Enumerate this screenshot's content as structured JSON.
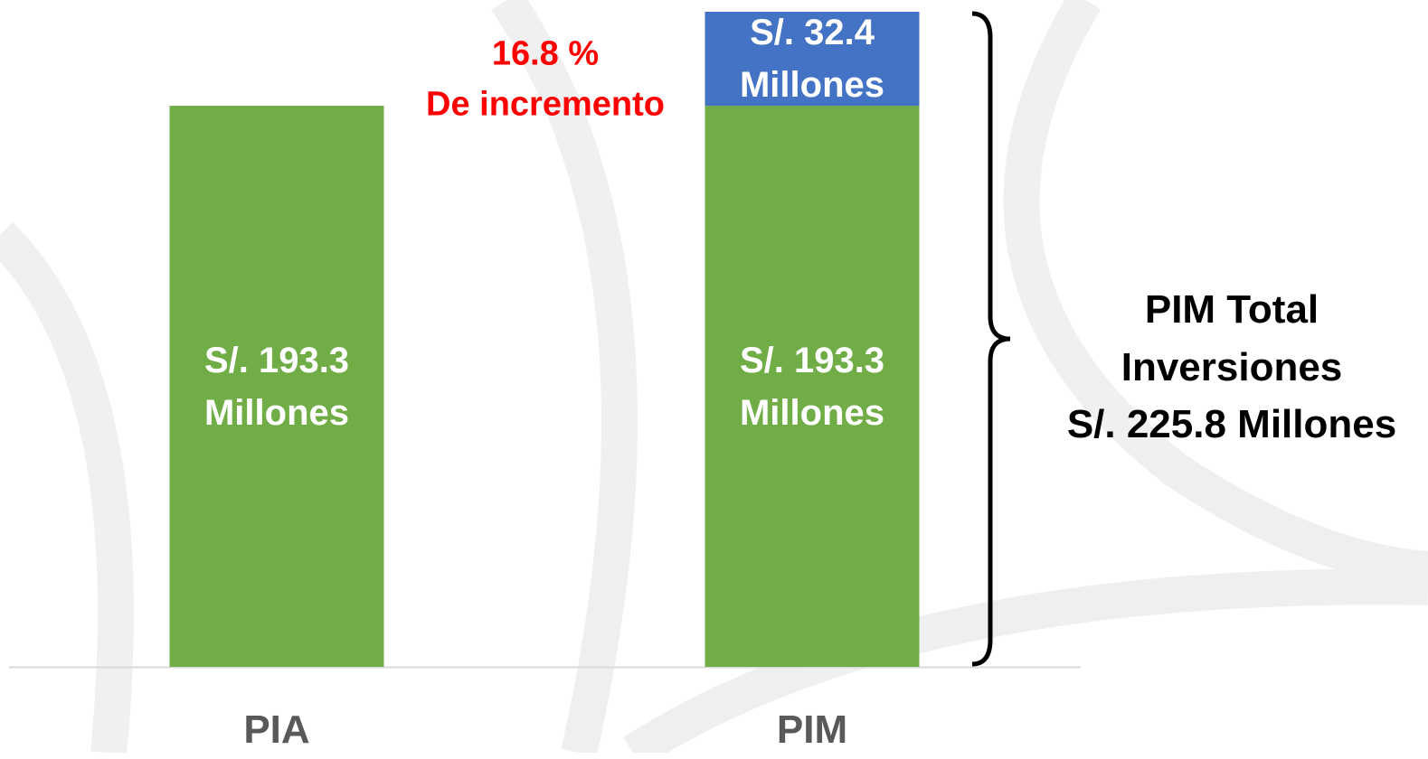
{
  "chart_data": {
    "type": "stacked-bar",
    "categories": [
      "PIA",
      "PIM"
    ],
    "series": [
      {
        "color": "#70ad47",
        "values": [
          193.3,
          193.3
        ],
        "value_labels": [
          "S/. 193.3 Millones",
          "S/. 193.3 Millones"
        ]
      },
      {
        "color": "#4472c4",
        "values": [
          null,
          32.4
        ],
        "value_labels": [
          null,
          "S/. 32.4 Millones"
        ]
      }
    ],
    "annotations": [
      "16.8 %",
      "De incremento",
      "PIM Total",
      "Inversiones",
      "S/. 225.8 Millones"
    ]
  }
}
